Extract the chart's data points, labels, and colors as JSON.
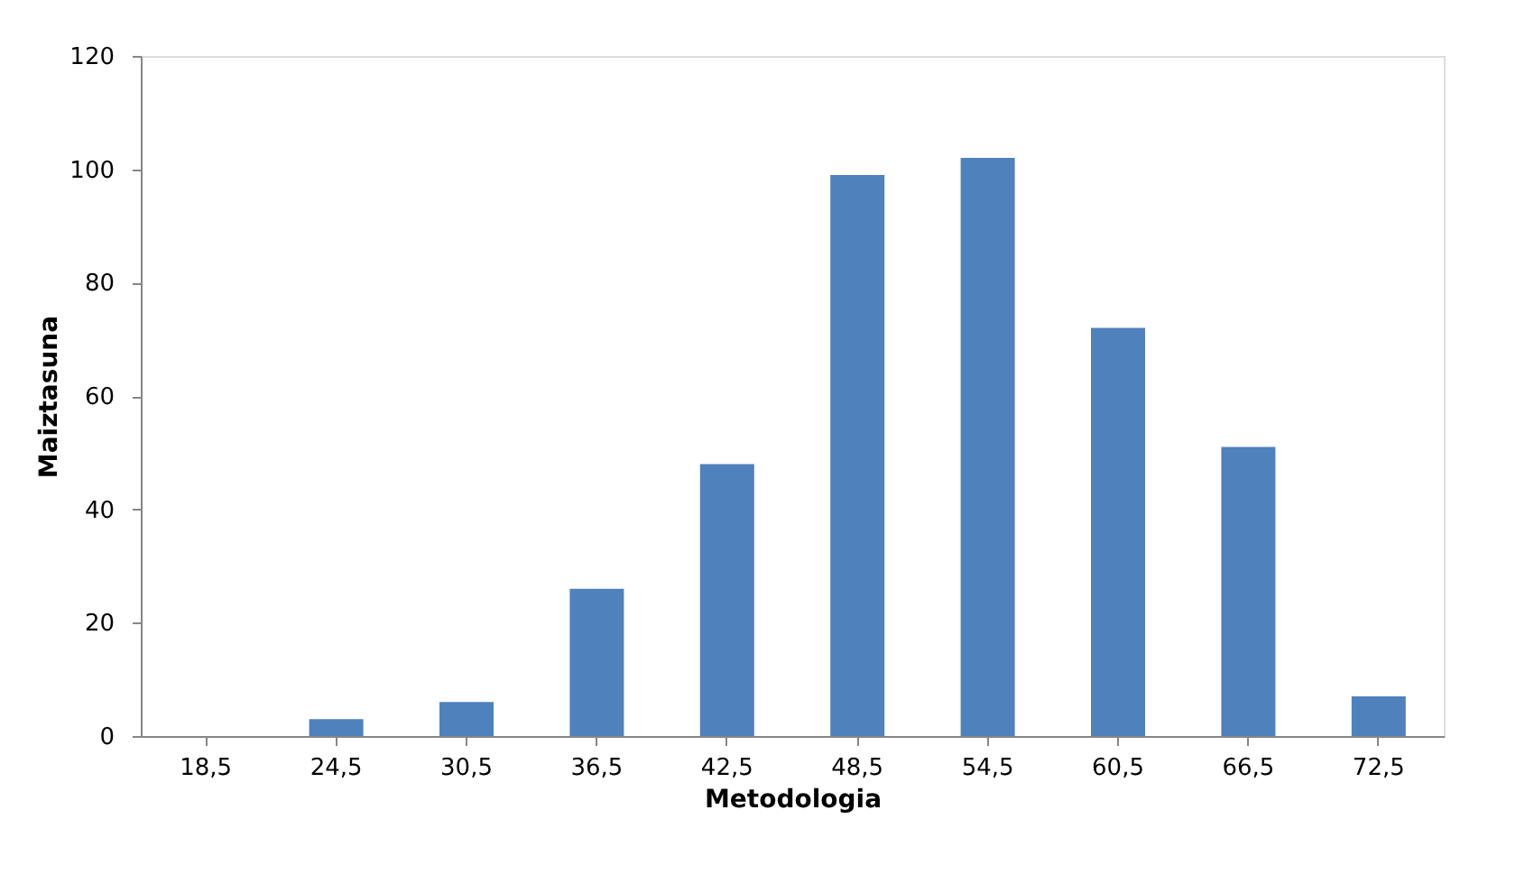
{
  "chart_data": {
    "type": "bar",
    "xlabel": "Metodologia",
    "ylabel": "Maiztasuna",
    "categories": [
      "18,5",
      "24,5",
      "30,5",
      "36,5",
      "42,5",
      "48,5",
      "54,5",
      "60,5",
      "66,5",
      "72,5"
    ],
    "values": [
      0,
      3,
      6,
      26,
      48,
      99,
      102,
      72,
      51,
      7
    ],
    "color": "#4f81bd",
    "ylim": [
      0,
      120
    ],
    "yticks": [
      0,
      20,
      40,
      60,
      80,
      100,
      120
    ],
    "grid": false
  }
}
